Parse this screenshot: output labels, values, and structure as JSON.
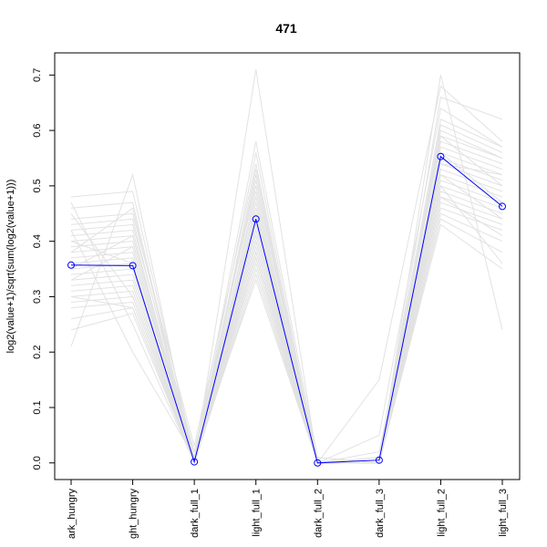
{
  "chart_data": {
    "type": "line",
    "title": "471",
    "ylabel": "log2(value+1)/sqrt(sum(log2(value+1)))",
    "xlabel": "",
    "categories": [
      "dark_hungry",
      "light_hungry",
      "dark_full_1",
      "light_full_1",
      "dark_full_2",
      "dark_full_3",
      "light_full_2",
      "light_full_3"
    ],
    "category_labels_visible": [
      "ark_hungry",
      "ght_hungry",
      "dark_full_1",
      "light_full_1",
      "dark_full_2",
      "dark_full_3",
      "light_full_2",
      "light_full_3"
    ],
    "yticks": [
      0.0,
      0.1,
      0.2,
      0.3,
      0.4,
      0.5,
      0.6,
      0.7
    ],
    "ytick_labels": [
      "0.0",
      "0.1",
      "0.2",
      "0.3",
      "0.4",
      "0.5",
      "0.6",
      "0.7"
    ],
    "ylim": [
      -0.03,
      0.74
    ],
    "grid": false,
    "legend": "none",
    "highlight": {
      "color": "#0000ff",
      "marker": "open-circle",
      "values": [
        0.357,
        0.356,
        0.002,
        0.44,
        0.0,
        0.005,
        0.553,
        0.463
      ]
    },
    "background_series": {
      "color": "#e2e2e2",
      "values": [
        [
          0.21,
          0.52,
          0.0,
          0.71,
          0.0,
          0.0,
          0.7,
          0.24
        ],
        [
          0.48,
          0.49,
          0.01,
          0.58,
          0.01,
          0.0,
          0.66,
          0.62
        ],
        [
          0.46,
          0.47,
          0.0,
          0.56,
          0.0,
          0.15,
          0.68,
          0.58
        ],
        [
          0.44,
          0.45,
          0.03,
          0.54,
          0.0,
          0.01,
          0.62,
          0.57
        ],
        [
          0.43,
          0.44,
          0.0,
          0.52,
          0.0,
          0.0,
          0.61,
          0.56
        ],
        [
          0.42,
          0.43,
          0.02,
          0.5,
          0.01,
          0.0,
          0.6,
          0.55
        ],
        [
          0.41,
          0.42,
          0.0,
          0.49,
          0.0,
          0.0,
          0.59,
          0.55
        ],
        [
          0.4,
          0.41,
          0.01,
          0.48,
          0.0,
          0.02,
          0.58,
          0.54
        ],
        [
          0.39,
          0.4,
          0.0,
          0.47,
          0.0,
          0.0,
          0.57,
          0.53
        ],
        [
          0.38,
          0.39,
          0.0,
          0.46,
          0.0,
          0.0,
          0.56,
          0.52
        ],
        [
          0.37,
          0.38,
          0.0,
          0.45,
          0.0,
          0.0,
          0.55,
          0.51
        ],
        [
          0.36,
          0.37,
          0.01,
          0.44,
          0.0,
          0.0,
          0.54,
          0.5
        ],
        [
          0.35,
          0.36,
          0.0,
          0.43,
          0.0,
          0.0,
          0.53,
          0.49
        ],
        [
          0.34,
          0.35,
          0.0,
          0.42,
          0.0,
          0.01,
          0.52,
          0.48
        ],
        [
          0.33,
          0.34,
          0.0,
          0.41,
          0.0,
          0.0,
          0.51,
          0.47
        ],
        [
          0.32,
          0.33,
          0.0,
          0.4,
          0.0,
          0.0,
          0.5,
          0.46
        ],
        [
          0.31,
          0.32,
          0.0,
          0.39,
          0.0,
          0.0,
          0.49,
          0.45
        ],
        [
          0.3,
          0.31,
          0.0,
          0.38,
          0.0,
          0.0,
          0.48,
          0.44
        ],
        [
          0.29,
          0.3,
          0.0,
          0.37,
          0.0,
          0.0,
          0.47,
          0.43
        ],
        [
          0.28,
          0.29,
          0.0,
          0.36,
          0.0,
          0.0,
          0.46,
          0.42
        ],
        [
          0.26,
          0.28,
          0.0,
          0.35,
          0.0,
          0.0,
          0.45,
          0.4
        ],
        [
          0.24,
          0.27,
          0.0,
          0.34,
          0.0,
          0.0,
          0.44,
          0.38
        ],
        [
          0.45,
          0.3,
          0.0,
          0.4,
          0.0,
          0.0,
          0.43,
          0.35
        ],
        [
          0.47,
          0.25,
          0.0,
          0.38,
          0.0,
          0.0,
          0.5,
          0.36
        ],
        [
          0.42,
          0.2,
          0.01,
          0.33,
          0.0,
          0.0,
          0.54,
          0.52
        ],
        [
          0.38,
          0.46,
          0.0,
          0.53,
          0.0,
          0.05,
          0.64,
          0.57
        ],
        [
          0.35,
          0.41,
          0.0,
          0.51,
          0.0,
          0.0,
          0.59,
          0.5
        ],
        [
          0.33,
          0.39,
          0.0,
          0.45,
          0.0,
          0.0,
          0.56,
          0.47
        ],
        [
          0.4,
          0.36,
          0.0,
          0.42,
          0.0,
          0.0,
          0.52,
          0.44
        ],
        [
          0.3,
          0.28,
          0.0,
          0.37,
          0.0,
          0.0,
          0.48,
          0.41
        ]
      ]
    }
  }
}
